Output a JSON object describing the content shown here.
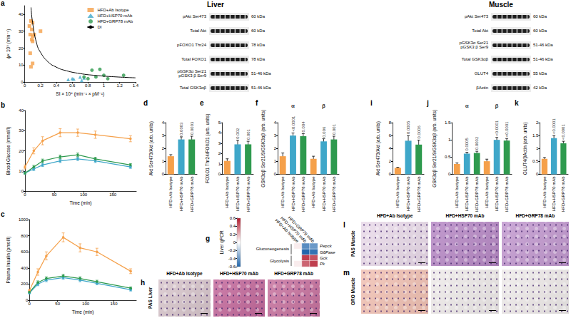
{
  "chart_data": [
    {
      "title": "a",
      "type": "scatter",
      "xlabel": "SI × 10⁴ (min⁻¹ × pM⁻¹)",
      "ylabel": "ϕ× 10⁹ (min⁻¹)",
      "xlim": [
        0,
        1.4
      ],
      "xticks": [
        0,
        0.2,
        0.4,
        0.6,
        0.8,
        1,
        1.2,
        1.4
      ],
      "ylim": [
        0,
        45
      ],
      "yticks": [
        0,
        10,
        20,
        30,
        40
      ],
      "legend": "upper right",
      "grid": false,
      "series": [
        {
          "name": "HFD+Ab Isotype",
          "color": "#f5a04a",
          "marker": "square",
          "x": [
            0.08,
            0.1,
            0.06,
            0.09,
            0.07,
            0.1,
            0.2,
            0.12,
            0.09,
            0.1,
            0.07,
            0.1,
            0.08
          ],
          "values": [
            36,
            35,
            33,
            31,
            28,
            27,
            30,
            28,
            25,
            24,
            17,
            11,
            9
          ]
        },
        {
          "name": "HFD+HSP70 mAb",
          "color": "#3fa7c9",
          "marker": "triangle",
          "x": [
            0.55,
            0.6,
            0.7,
            0.72,
            0.75,
            0.62
          ],
          "values": [
            1.5,
            2,
            3,
            1,
            2.5,
            1.8
          ]
        },
        {
          "name": "HFD+GRP78 mAb",
          "color": "#2e9a4e",
          "marker": "circle",
          "x": [
            0.85,
            0.95,
            0.9,
            1,
            1.25,
            0.75,
            0.8,
            1.05
          ],
          "values": [
            7,
            7.5,
            3,
            4,
            4,
            3,
            2,
            2
          ]
        },
        {
          "name": "DI",
          "type": "line",
          "color": "#000000",
          "x": [
            0.08,
            0.1,
            0.15,
            0.2,
            0.3,
            0.4,
            0.5,
            0.7,
            0.9,
            1.1,
            1.4
          ],
          "values": [
            44,
            35,
            23,
            17.5,
            11.7,
            8.8,
            7,
            5,
            3.9,
            3.2,
            2.5
          ]
        }
      ]
    },
    {
      "title": "b",
      "type": "line",
      "xlabel": "Time (min)",
      "ylabel": "Blood Glucose (mmol/l)",
      "xlim": [
        0,
        190
      ],
      "xticks": [
        0,
        50,
        100,
        150
      ],
      "ylim": [
        0,
        40
      ],
      "yticks": [
        0,
        10,
        20,
        30,
        40
      ],
      "grid": false,
      "x": [
        0,
        15,
        30,
        60,
        90,
        120,
        180
      ],
      "series": [
        {
          "name": "HFD+Ab Isotype",
          "color": "#f5a04a",
          "marker": "circle",
          "values": [
            12,
            20,
            25,
            29,
            29,
            28,
            26
          ],
          "errors": [
            1,
            1.5,
            2,
            2,
            1.8,
            1.8,
            1.5
          ]
        },
        {
          "name": "HFD+HSP70 mAb",
          "color": "#3fa7c9",
          "marker": "circle",
          "values": [
            9,
            11,
            13,
            15,
            16,
            15,
            12
          ],
          "errors": [
            0.5,
            0.8,
            0.8,
            0.8,
            0.8,
            0.8,
            0.7
          ]
        },
        {
          "name": "HFD+GRP78 mAb",
          "color": "#2e9a4e",
          "marker": "circle",
          "values": [
            9,
            12,
            15,
            17,
            18,
            16,
            13
          ],
          "errors": [
            0.5,
            0.8,
            0.9,
            0.9,
            0.9,
            0.8,
            0.7
          ]
        }
      ]
    },
    {
      "title": "c",
      "type": "line",
      "xlabel": "Time (min)",
      "ylabel": "Plasma Insulin (pmol/l)",
      "xlim": [
        0,
        190
      ],
      "xticks": [
        0,
        50,
        100,
        150
      ],
      "ylim": [
        0,
        1000
      ],
      "yticks": [
        0,
        200,
        400,
        600,
        800,
        1000
      ],
      "grid": false,
      "x": [
        0,
        15,
        30,
        60,
        90,
        120,
        180
      ],
      "series": [
        {
          "name": "HFD+Ab Isotype",
          "color": "#f5a04a",
          "marker": "circle",
          "values": [
            120,
            350,
            550,
            780,
            650,
            600,
            360
          ],
          "errors": [
            15,
            40,
            50,
            55,
            50,
            45,
            30
          ]
        },
        {
          "name": "HFD+HSP70 mAb",
          "color": "#3fa7c9",
          "marker": "circle",
          "values": [
            90,
            200,
            250,
            280,
            250,
            210,
            130
          ],
          "errors": [
            10,
            20,
            20,
            20,
            20,
            18,
            15
          ]
        },
        {
          "name": "HFD+GRP78 mAb",
          "color": "#2e9a4e",
          "marker": "circle",
          "values": [
            100,
            220,
            270,
            300,
            270,
            230,
            150
          ],
          "errors": [
            10,
            20,
            20,
            22,
            20,
            18,
            15
          ]
        }
      ]
    },
    {
      "title": "d",
      "type": "bar",
      "ylabel": "Akt Ser473/Akt (arb. units)",
      "categories": [
        "HFD+Ab Isotype",
        "HFD+HSP70 mAb",
        "HFD+GRP78 mAb"
      ],
      "colors": [
        "#f5a04a",
        "#3fa7c9",
        "#2e9a4e"
      ],
      "values": [
        1.4,
        2.7,
        2.7
      ],
      "errors": [
        0.12,
        0.2,
        0.25
      ],
      "p_values": [
        null,
        "0.0003",
        "0.0003"
      ],
      "ylim": [
        0,
        4
      ],
      "yticks": [
        0,
        1,
        2,
        3,
        4
      ],
      "grid": false
    },
    {
      "title": "e",
      "type": "bar",
      "ylabel": "FOXO1 Thr24/FOXO1 (arb. units)",
      "categories": [
        "HFD+Ab Isotype",
        "HFD+HSP70 mAb",
        "HFD+GRP78 mAb"
      ],
      "colors": [
        "#f5a04a",
        "#3fa7c9",
        "#2e9a4e"
      ],
      "values": [
        1.3,
        2.9,
        2.9
      ],
      "errors": [
        0.2,
        0.4,
        0.3
      ],
      "p_values": [
        null,
        "0.002",
        "0.001"
      ],
      "ylim": [
        0,
        5
      ],
      "yticks": [
        0,
        1,
        2,
        3,
        4,
        5
      ],
      "grid": false
    },
    {
      "title": "f",
      "type": "bar",
      "ylabel": "GSK3αβ Ser21/9/GSK3αβ (arb. units)",
      "categories": [
        "HFD+Ab Isotype",
        "HFD+HSP70 mAb",
        "HFD+GRP78 mAb",
        "HFD+Ab Isotype",
        "HFD+HSP70 mAb",
        "HFD+GRP78 mAb"
      ],
      "colors": [
        "#f5a04a",
        "#3fa7c9",
        "#2e9a4e",
        "#f5a04a",
        "#3fa7c9",
        "#2e9a4e"
      ],
      "series": [
        {
          "name": "α",
          "values": [
            1.4,
            3.0,
            2.95,
            null,
            null,
            null
          ],
          "errors": [
            0.25,
            0.2,
            0.2,
            null,
            null,
            null
          ],
          "p_values": [
            null,
            "<0.0001",
            "0.004",
            null,
            null,
            null
          ]
        },
        {
          "name": "β",
          "values": [
            null,
            null,
            null,
            1.2,
            2.55,
            2.7
          ],
          "errors": [
            null,
            null,
            null,
            0.2,
            0.2,
            0.25
          ],
          "p_values": [
            null,
            null,
            null,
            null,
            "0.006",
            "0.001"
          ]
        }
      ],
      "ylim": [
        0,
        4
      ],
      "yticks": [
        0,
        1,
        2,
        3,
        4
      ],
      "grid": false
    },
    {
      "title": "i",
      "type": "bar",
      "ylabel": "Akt Ser473/Akt (arb. units)",
      "categories": [
        "HFD+Ab Isotype",
        "HFD+HSP70 mAb",
        "HFD+GRP78 mAb"
      ],
      "colors": [
        "#f5a04a",
        "#3fa7c9",
        "#2e9a4e"
      ],
      "values": [
        1.0,
        5.2,
        4.6
      ],
      "errors": [
        0.1,
        0.8,
        0.7
      ],
      "p_values": [
        null,
        "0.0005",
        "0.0006"
      ],
      "ylim": [
        0,
        8
      ],
      "yticks": [
        0,
        2,
        4,
        6,
        8
      ],
      "grid": false
    },
    {
      "title": "j",
      "type": "bar",
      "ylabel": "GSK3αβ Ser21/9/GSK3αβ (arb. units)",
      "categories": [
        "HFD+Ab Isotype",
        "HFD+HSP70 mAb",
        "HFD+GRP78 mAb",
        "HFD+Ab Isotype",
        "HFD+HSP70 mAb",
        "HFD+GRP78 mAb"
      ],
      "colors": [
        "#f5a04a",
        "#3fa7c9",
        "#2e9a4e",
        "#f5a04a",
        "#3fa7c9",
        "#2e9a4e"
      ],
      "series": [
        {
          "name": "α",
          "values": [
            0.3,
            0.6,
            0.62,
            null,
            null,
            null
          ],
          "errors": [
            0.03,
            0.04,
            0.05,
            null,
            null,
            null
          ],
          "p_values": [
            null,
            "0.0005",
            "0.0002",
            null,
            null,
            null
          ]
        },
        {
          "name": "β",
          "values": [
            null,
            null,
            null,
            0.38,
            1.0,
            0.98
          ],
          "errors": [
            null,
            null,
            null,
            0.06,
            0.07,
            0.06
          ],
          "p_values": [
            null,
            null,
            null,
            null,
            "<0.0001",
            "<0.0001"
          ]
        }
      ],
      "ylim": [
        0,
        1.5
      ],
      "yticks": [
        0,
        0.5,
        1,
        1.5
      ],
      "grid": false
    },
    {
      "title": "k",
      "type": "bar",
      "ylabel": "GLUT4/βActin (arb. units)",
      "categories": [
        "HFD+Ab Isotype",
        "HFD+HSP70 mAb",
        "HFD+GRP78 mAb"
      ],
      "colors": [
        "#f5a04a",
        "#3fa7c9",
        "#2e9a4e"
      ],
      "values": [
        0.6,
        1.4,
        1.2
      ],
      "errors": [
        0.05,
        0.1,
        0.08
      ],
      "p_values": [
        null,
        "<0.0001",
        "<0.0001"
      ],
      "ylim": [
        0,
        2
      ],
      "yticks": [
        0,
        0.5,
        1,
        1.5,
        2
      ],
      "grid": false
    },
    {
      "title": "g",
      "type": "heatmap",
      "ylabel": "Liver qPCR",
      "categories": [
        "HFD+Ab Isotype",
        "HFD+HSP70 mAb",
        "HFD+GRP78 mAb"
      ],
      "rows": [
        "Pepck",
        "G6Pase",
        "Gck",
        "Pk"
      ],
      "row_groups": [
        {
          "label": "Gluconeogenesis",
          "rows": [
            "Pepck",
            "G6Pase"
          ]
        },
        {
          "label": "Glycolysis",
          "rows": [
            "Gck",
            "Pk"
          ]
        }
      ],
      "cells": [
        [
          0.05,
          -0.45,
          -0.4
        ],
        [
          0,
          -0.6,
          -0.55
        ],
        [
          0,
          0.5,
          0.45
        ],
        [
          0.05,
          0.4,
          0.5
        ]
      ],
      "colorbar": {
        "range": [
          -0.6,
          0.6
        ],
        "ticks": [
          -0.6,
          -0.4,
          -0.2,
          0,
          0.2,
          0.4,
          0.6
        ],
        "colors": [
          "#2166ac",
          "#ffffff",
          "#b2182b"
        ]
      }
    }
  ],
  "headers": [
    "Liver",
    "Muscle"
  ],
  "blots": [
    {
      "rows": [
        {
          "label": "pAkt Ser473",
          "size": "60 kDa"
        },
        {
          "label": "Total Akt",
          "size": "60 kDa"
        },
        {
          "label": "pFOXO1 Thr24",
          "size": "78 kDa"
        },
        {
          "label": "Total FOXO1",
          "size": "78 kDa"
        },
        {
          "label": "pGSK3α Ser21\npGSK3 β Ser9",
          "size": "51-46 kDa"
        },
        {
          "label": "Total GSK3αβ",
          "size": "51-46 kDa"
        }
      ]
    },
    {
      "rows": [
        {
          "label": "pAkt Ser473",
          "size": "60 kDa"
        },
        {
          "label": "Total Akt",
          "size": "60 kDa"
        },
        {
          "label": "pGSK3α Ser21\npGSK3 β Ser9",
          "size": "51-46 kDa"
        },
        {
          "label": "Total GSK3αβ",
          "size": "51-46 kDa"
        },
        {
          "label": "GLUT4",
          "size": "55 kDa"
        },
        {
          "label": "βActin",
          "size": "42 kDa"
        }
      ]
    }
  ],
  "images": [
    {
      "title": "h",
      "label": "PAS Liver",
      "panels": [
        "HFD+Ab Isotype",
        "HFD+HSP70 mAb",
        "HFD+GRP78 mAb"
      ],
      "colors": [
        "#d8c6cc",
        "#c46a9c",
        "#c8739f"
      ]
    },
    {
      "title": "l",
      "label": "PAS Muscle",
      "panels": [
        "HFD+Ab Isotype",
        "HFD+HSP70 mAb",
        "HFD+GRP78 mAb"
      ],
      "colors": [
        "#eadbea",
        "#b88ac6",
        "#c39ad0"
      ]
    },
    {
      "title": "m",
      "label": "ORO Muscle",
      "colors": [
        "#f2c2b4",
        "#efebea",
        "#efebea"
      ]
    }
  ]
}
